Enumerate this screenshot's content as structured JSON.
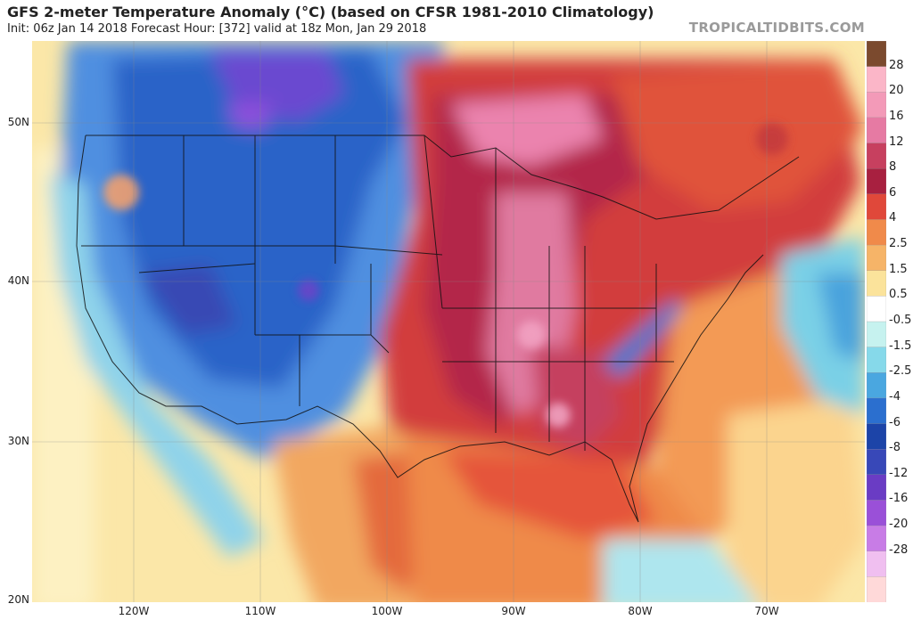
{
  "header": {
    "title": "GFS 2-meter Temperature Anomaly (°C) (based on CFSR 1981-2010 Climatology)",
    "subtitle": "Init: 06z Jan 14 2018   Forecast Hour: [372]   valid at 18z Mon, Jan 29 2018",
    "watermark": "TROPICALTIDBITS.COM"
  },
  "axes": {
    "lat_labels": [
      "50N",
      "40N",
      "30N",
      "20N"
    ],
    "lon_labels": [
      "120W",
      "110W",
      "100W",
      "90W",
      "80W",
      "70W"
    ]
  },
  "colorbar": {
    "labels": [
      "28",
      "20",
      "16",
      "12",
      "8",
      "6",
      "4",
      "2.5",
      "1.5",
      "0.5",
      "-0.5",
      "-1.5",
      "-2.5",
      "-4",
      "-6",
      "-8",
      "-12",
      "-16",
      "-20",
      "-28"
    ],
    "colors": [
      "#7b4a2e",
      "#fbb6c8",
      "#f39ab8",
      "#e67aa3",
      "#c7405f",
      "#a82040",
      "#e0483a",
      "#f08a4a",
      "#f6b468",
      "#fbe39b",
      "#ffffff",
      "#c6f2ef",
      "#86d9ea",
      "#4aa7e0",
      "#2b6fcf",
      "#1c44a8",
      "#3848b8",
      "#6a3cc4",
      "#9a50d8",
      "#c87ce6",
      "#f0bff0",
      "#ffd9d9"
    ]
  }
}
